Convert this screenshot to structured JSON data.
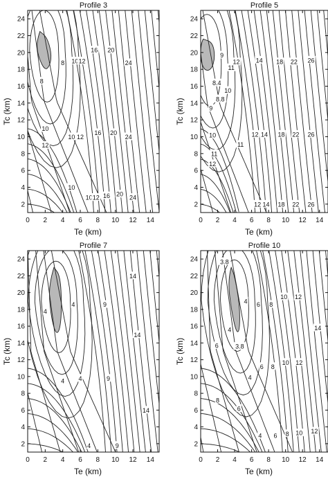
{
  "chart_data": [
    {
      "type": "contour",
      "title": "Profile 3",
      "xlabel": "Te (km)",
      "ylabel": "Tc (km)",
      "xlim": [
        0,
        15
      ],
      "ylim": [
        1,
        25
      ],
      "xticks": [
        0,
        2,
        4,
        6,
        8,
        10,
        12,
        14
      ],
      "yticks": [
        2,
        4,
        6,
        8,
        10,
        12,
        14,
        16,
        18,
        20,
        22,
        24
      ],
      "minimum_region": [
        [
          1.4,
          22.5
        ],
        [
          2.2,
          21.8
        ],
        [
          2.7,
          20.0
        ],
        [
          2.6,
          18.6
        ],
        [
          2.0,
          17.8
        ],
        [
          1.2,
          19.5
        ],
        [
          1.0,
          21.3
        ]
      ],
      "contour_labels": [
        {
          "text": "8",
          "x": 4.0,
          "y": 18.8
        },
        {
          "text": "8",
          "x": 1.6,
          "y": 16.6
        },
        {
          "text": "10",
          "x": 5.4,
          "y": 19.0
        },
        {
          "text": "12",
          "x": 6.2,
          "y": 19.0
        },
        {
          "text": "16",
          "x": 7.6,
          "y": 20.3
        },
        {
          "text": "20",
          "x": 9.5,
          "y": 20.3
        },
        {
          "text": "24",
          "x": 11.5,
          "y": 18.8
        },
        {
          "text": "10",
          "x": 2.0,
          "y": 11.0
        },
        {
          "text": "12",
          "x": 2.0,
          "y": 9.0
        },
        {
          "text": "10",
          "x": 5.0,
          "y": 10.0
        },
        {
          "text": "12",
          "x": 6.0,
          "y": 10.0
        },
        {
          "text": "16",
          "x": 8.0,
          "y": 10.5
        },
        {
          "text": "20",
          "x": 9.8,
          "y": 10.5
        },
        {
          "text": "24",
          "x": 11.5,
          "y": 10.0
        },
        {
          "text": "10",
          "x": 5.0,
          "y": 4.0
        },
        {
          "text": "10",
          "x": 7.0,
          "y": 2.8
        },
        {
          "text": "12",
          "x": 7.8,
          "y": 2.8
        },
        {
          "text": "16",
          "x": 9.0,
          "y": 3.0
        },
        {
          "text": "20",
          "x": 10.5,
          "y": 3.2
        },
        {
          "text": "24",
          "x": 12.0,
          "y": 2.8
        }
      ]
    },
    {
      "type": "contour",
      "title": "Profile 5",
      "xlabel": "Te (km)",
      "ylabel": "Tc (km)",
      "xlim": [
        0,
        15
      ],
      "ylim": [
        1,
        25
      ],
      "xticks": [
        0,
        2,
        4,
        6,
        8,
        10,
        12,
        14
      ],
      "yticks": [
        2,
        4,
        6,
        8,
        10,
        12,
        14,
        16,
        18,
        20,
        22,
        24
      ],
      "minimum_region": [
        [
          0.3,
          21.6
        ],
        [
          1.4,
          21.2
        ],
        [
          1.7,
          19.5
        ],
        [
          1.3,
          18.0
        ],
        [
          0.5,
          17.8
        ],
        [
          0.0,
          19.0
        ],
        [
          0.0,
          21.0
        ]
      ],
      "contour_labels": [
        {
          "text": "9",
          "x": 2.5,
          "y": 19.7
        },
        {
          "text": "11",
          "x": 3.6,
          "y": 18.2
        },
        {
          "text": "12",
          "x": 4.2,
          "y": 18.9
        },
        {
          "text": "14",
          "x": 6.9,
          "y": 19.1
        },
        {
          "text": "18",
          "x": 9.3,
          "y": 18.9
        },
        {
          "text": "22",
          "x": 11.0,
          "y": 18.9
        },
        {
          "text": "26",
          "x": 13.0,
          "y": 19.1
        },
        {
          "text": "8.4",
          "x": 1.9,
          "y": 16.4
        },
        {
          "text": "10",
          "x": 3.2,
          "y": 15.5
        },
        {
          "text": "8.8",
          "x": 2.3,
          "y": 14.5
        },
        {
          "text": "9",
          "x": 1.2,
          "y": 13.4
        },
        {
          "text": "10",
          "x": 1.4,
          "y": 10.2
        },
        {
          "text": "11",
          "x": 1.6,
          "y": 8.0
        },
        {
          "text": "12",
          "x": 1.4,
          "y": 6.8
        },
        {
          "text": "11",
          "x": 4.7,
          "y": 9.1
        },
        {
          "text": "12",
          "x": 6.4,
          "y": 10.3
        },
        {
          "text": "14",
          "x": 7.5,
          "y": 10.3
        },
        {
          "text": "18",
          "x": 9.5,
          "y": 10.3
        },
        {
          "text": "22",
          "x": 11.2,
          "y": 10.3
        },
        {
          "text": "26",
          "x": 13.0,
          "y": 10.3
        },
        {
          "text": "12",
          "x": 6.7,
          "y": 2.0
        },
        {
          "text": "14",
          "x": 7.7,
          "y": 2.0
        },
        {
          "text": "18",
          "x": 9.5,
          "y": 2.0
        },
        {
          "text": "22",
          "x": 11.2,
          "y": 2.0
        },
        {
          "text": "26",
          "x": 13.0,
          "y": 2.0
        }
      ]
    },
    {
      "type": "contour",
      "title": "Profile 7",
      "xlabel": "Te (km)",
      "ylabel": "Tc (km)",
      "xlim": [
        0,
        15
      ],
      "ylim": [
        1,
        25
      ],
      "xticks": [
        0,
        2,
        4,
        6,
        8,
        10,
        12,
        14
      ],
      "yticks": [
        2,
        4,
        6,
        8,
        10,
        12,
        14,
        16,
        18,
        20,
        22,
        24
      ],
      "minimum_region": [
        [
          3.0,
          23.0
        ],
        [
          3.7,
          22.0
        ],
        [
          3.9,
          18.5
        ],
        [
          3.7,
          15.6
        ],
        [
          3.2,
          15.0
        ],
        [
          2.6,
          17.5
        ],
        [
          2.4,
          21.0
        ]
      ],
      "contour_labels": [
        {
          "text": "4",
          "x": 2.0,
          "y": 17.8
        },
        {
          "text": "4",
          "x": 5.2,
          "y": 18.6
        },
        {
          "text": "9",
          "x": 8.8,
          "y": 18.6
        },
        {
          "text": "14",
          "x": 12.0,
          "y": 22.0
        },
        {
          "text": "14",
          "x": 12.5,
          "y": 15.0
        },
        {
          "text": "4",
          "x": 4.0,
          "y": 9.5
        },
        {
          "text": "4",
          "x": 6.0,
          "y": 9.8
        },
        {
          "text": "9",
          "x": 9.2,
          "y": 9.8
        },
        {
          "text": "14",
          "x": 13.5,
          "y": 6.0
        },
        {
          "text": "4",
          "x": 7.0,
          "y": 1.8
        },
        {
          "text": "9",
          "x": 10.2,
          "y": 1.8
        }
      ]
    },
    {
      "type": "contour",
      "title": "Profile 10",
      "xlabel": "Te (km)",
      "ylabel": "Tc (km)",
      "xlim": [
        0,
        15
      ],
      "ylim": [
        1,
        25
      ],
      "xticks": [
        0,
        2,
        4,
        6,
        8,
        10,
        12,
        14
      ],
      "yticks": [
        2,
        4,
        6,
        8,
        10,
        12,
        14,
        16,
        18,
        20,
        22,
        24
      ],
      "minimum_region": [
        [
          3.6,
          23.0
        ],
        [
          4.0,
          22.0
        ],
        [
          4.6,
          18.5
        ],
        [
          4.6,
          15.5
        ],
        [
          4.2,
          15.2
        ],
        [
          3.6,
          18.0
        ],
        [
          3.2,
          21.5
        ]
      ],
      "contour_labels": [
        {
          "text": "3.8",
          "x": 2.8,
          "y": 23.7
        },
        {
          "text": "4",
          "x": 5.3,
          "y": 19.0
        },
        {
          "text": "6",
          "x": 6.8,
          "y": 18.6
        },
        {
          "text": "8",
          "x": 8.3,
          "y": 18.6
        },
        {
          "text": "10",
          "x": 9.8,
          "y": 19.5
        },
        {
          "text": "12",
          "x": 11.5,
          "y": 19.5
        },
        {
          "text": "14",
          "x": 13.8,
          "y": 15.8
        },
        {
          "text": "4",
          "x": 3.4,
          "y": 15.6
        },
        {
          "text": "3.8",
          "x": 4.6,
          "y": 13.6
        },
        {
          "text": "6",
          "x": 1.9,
          "y": 13.7
        },
        {
          "text": "4",
          "x": 5.8,
          "y": 9.9
        },
        {
          "text": "6",
          "x": 7.2,
          "y": 11.2
        },
        {
          "text": "8",
          "x": 8.5,
          "y": 11.2
        },
        {
          "text": "10",
          "x": 10.0,
          "y": 11.7
        },
        {
          "text": "12",
          "x": 11.6,
          "y": 11.7
        },
        {
          "text": "8",
          "x": 2.0,
          "y": 7.2
        },
        {
          "text": "6",
          "x": 4.5,
          "y": 6.2
        },
        {
          "text": "4",
          "x": 7.0,
          "y": 3.0
        },
        {
          "text": "6",
          "x": 8.8,
          "y": 3.0
        },
        {
          "text": "8",
          "x": 10.2,
          "y": 3.2
        },
        {
          "text": "10",
          "x": 11.6,
          "y": 3.3
        },
        {
          "text": "12",
          "x": 13.4,
          "y": 3.5
        }
      ]
    }
  ]
}
